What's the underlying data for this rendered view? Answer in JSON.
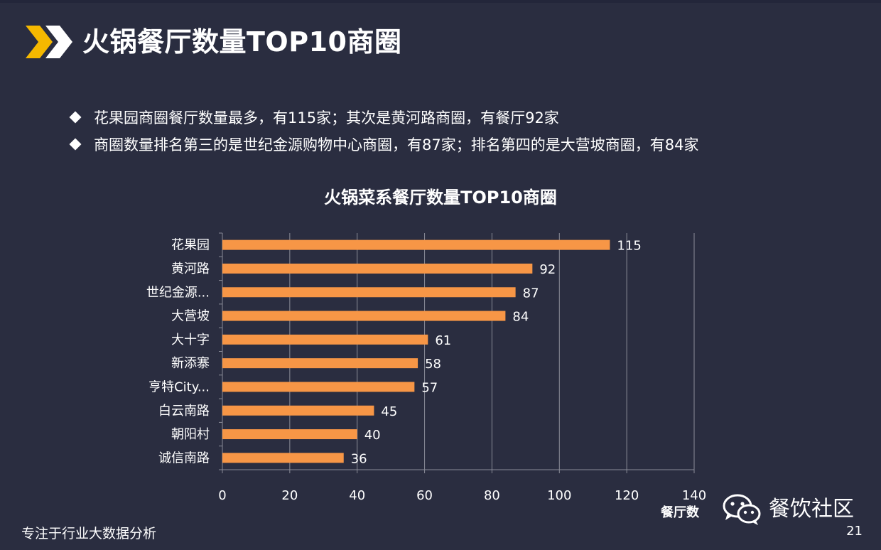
{
  "slide": {
    "title": "火锅餐厅数量TOP10商圈",
    "bullets": [
      "花果园商圈餐厅数量最多，有115家；其次是黄河路商圈，有餐厅92家",
      "商圈数量排名第三的是世纪金源购物中心商圈，有87家；排名第四的是大营坡商圈，有84家"
    ],
    "footer": "专注于行业大数据分析",
    "page_number": "21",
    "watermark": "餐饮社区"
  },
  "colors": {
    "background": "#2a2d40",
    "bar": "#f79646",
    "grid": "#8a8c98",
    "accent_yellow": "#f5b800",
    "text": "#ffffff"
  },
  "chart_data": {
    "type": "bar",
    "orientation": "horizontal",
    "title": "火锅菜系餐厅数量TOP10商圈",
    "categories": [
      "花果园",
      "黄河路",
      "世纪金源...",
      "大营坡",
      "大十字",
      "新添寨",
      "亨特City...",
      "白云南路",
      "朝阳村",
      "诚信南路"
    ],
    "values": [
      115,
      92,
      87,
      84,
      61,
      58,
      57,
      45,
      40,
      36
    ],
    "xlabel": "餐厅数",
    "ylabel": "",
    "xlim": [
      0,
      140
    ],
    "xticks": [
      0,
      20,
      40,
      60,
      80,
      100,
      120,
      140
    ],
    "grid": true,
    "data_labels": true
  }
}
